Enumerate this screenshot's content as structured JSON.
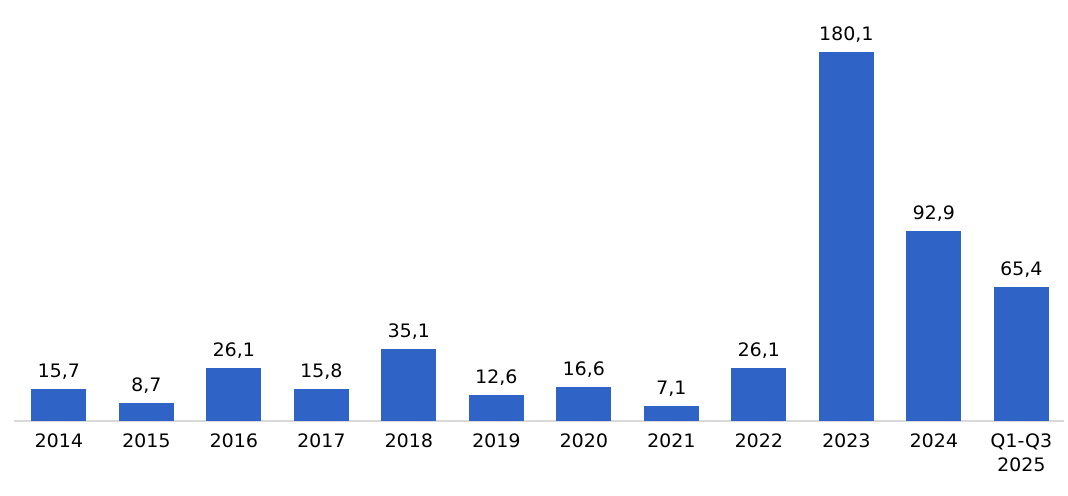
{
  "chart_data": {
    "type": "bar",
    "categories": [
      "2014",
      "2015",
      "2016",
      "2017",
      "2018",
      "2019",
      "2020",
      "2021",
      "2022",
      "2023",
      "2024",
      "Q1-Q3\n2025"
    ],
    "values": [
      15.7,
      8.7,
      26.1,
      15.8,
      35.1,
      12.6,
      16.6,
      7.1,
      26.1,
      180.1,
      92.9,
      65.4
    ],
    "value_labels": [
      "15,7",
      "8,7",
      "26,1",
      "15,8",
      "35,1",
      "12,6",
      "16,6",
      "7,1",
      "26,1",
      "180,1",
      "92,9",
      "65,4"
    ],
    "title": "",
    "xlabel": "",
    "ylabel": "",
    "ylim": [
      0,
      190
    ],
    "decimal_separator": ",",
    "grid": false,
    "legend_position": "none",
    "bar_color": "#2F63C6",
    "axis_line_color": "#D9D9D9",
    "label_color": "#000000"
  }
}
